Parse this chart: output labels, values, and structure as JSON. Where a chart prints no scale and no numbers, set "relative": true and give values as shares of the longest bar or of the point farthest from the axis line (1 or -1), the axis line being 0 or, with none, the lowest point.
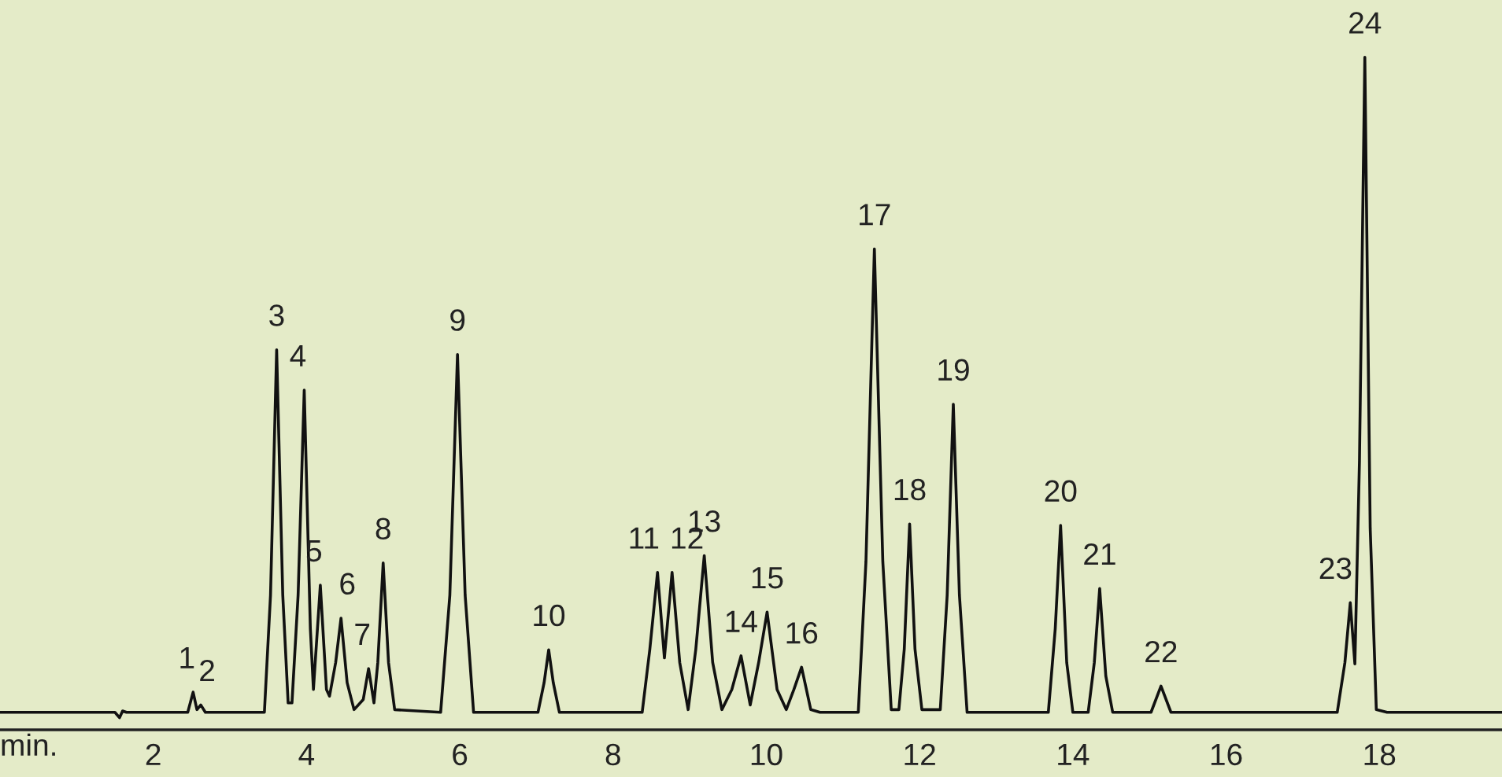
{
  "chart_data": {
    "type": "line",
    "relative": true,
    "xlabel": "min.",
    "xlim": [
      0,
      19.6
    ],
    "xticks": [
      2,
      4,
      6,
      8,
      10,
      12,
      14,
      16,
      18
    ],
    "grid": false,
    "legend": false,
    "marker": "none",
    "line_style": "solid",
    "series": [
      {
        "color": "#111111",
        "x": [
          0,
          1.5,
          1.56,
          1.6,
          1.65,
          2.45,
          2.52,
          2.57,
          2.62,
          2.68,
          3.45,
          3.53,
          3.61,
          3.69,
          3.76,
          3.81,
          3.89,
          3.97,
          4.05,
          4.09,
          4.18,
          4.26,
          4.3,
          4.38,
          4.45,
          4.53,
          4.62,
          4.74,
          4.81,
          4.88,
          4.93,
          5.0,
          5.07,
          5.15,
          5.75,
          5.87,
          5.97,
          6.07,
          6.18,
          7.02,
          7.1,
          7.16,
          7.22,
          7.3,
          8.38,
          8.48,
          8.58,
          8.67,
          8.77,
          8.87,
          8.98,
          9.08,
          9.19,
          9.3,
          9.42,
          9.55,
          9.67,
          9.79,
          9.9,
          10.01,
          10.14,
          10.26,
          10.36,
          10.46,
          10.58,
          10.7,
          11.2,
          11.3,
          11.41,
          11.52,
          11.63,
          11.73,
          11.8,
          11.87,
          11.94,
          12.03,
          12.27,
          12.36,
          12.44,
          12.52,
          12.62,
          13.68,
          13.77,
          13.84,
          13.92,
          14.0,
          14.2,
          14.28,
          14.35,
          14.43,
          14.52,
          15.02,
          15.15,
          15.28,
          17.45,
          17.55,
          17.62,
          17.68,
          17.74,
          17.81,
          17.88,
          17.96,
          18.1,
          19.6
        ],
        "values": [
          0.026,
          0.026,
          0.018,
          0.028,
          0.026,
          0.026,
          0.056,
          0.03,
          0.037,
          0.026,
          0.026,
          0.2,
          0.565,
          0.2,
          0.04,
          0.04,
          0.2,
          0.505,
          0.15,
          0.06,
          0.215,
          0.06,
          0.05,
          0.1,
          0.166,
          0.07,
          0.03,
          0.045,
          0.091,
          0.04,
          0.1,
          0.248,
          0.1,
          0.03,
          0.026,
          0.2,
          0.558,
          0.2,
          0.026,
          0.026,
          0.07,
          0.119,
          0.07,
          0.026,
          0.026,
          0.12,
          0.234,
          0.107,
          0.234,
          0.1,
          0.03,
          0.12,
          0.259,
          0.1,
          0.03,
          0.06,
          0.11,
          0.037,
          0.1,
          0.175,
          0.06,
          0.03,
          0.06,
          0.093,
          0.03,
          0.026,
          0.026,
          0.25,
          0.715,
          0.25,
          0.03,
          0.03,
          0.12,
          0.306,
          0.12,
          0.03,
          0.03,
          0.2,
          0.484,
          0.2,
          0.026,
          0.026,
          0.15,
          0.304,
          0.1,
          0.026,
          0.026,
          0.1,
          0.21,
          0.08,
          0.026,
          0.026,
          0.065,
          0.026,
          0.026,
          0.1,
          0.189,
          0.098,
          0.4,
          1.0,
          0.3,
          0.03,
          0.026,
          0.026
        ]
      }
    ],
    "annotations": [
      {
        "text": "1",
        "x": 2.52,
        "y": 0.056
      },
      {
        "text": "2",
        "x": 2.62,
        "y": 0.037
      },
      {
        "text": "3",
        "x": 3.61,
        "y": 0.565
      },
      {
        "text": "4",
        "x": 3.97,
        "y": 0.505
      },
      {
        "text": "5",
        "x": 4.18,
        "y": 0.215
      },
      {
        "text": "6",
        "x": 4.45,
        "y": 0.166
      },
      {
        "text": "7",
        "x": 4.81,
        "y": 0.091
      },
      {
        "text": "8",
        "x": 5.0,
        "y": 0.248
      },
      {
        "text": "9",
        "x": 5.97,
        "y": 0.558
      },
      {
        "text": "10",
        "x": 7.16,
        "y": 0.119
      },
      {
        "text": "11",
        "x": 8.58,
        "y": 0.234
      },
      {
        "text": "12",
        "x": 8.77,
        "y": 0.234
      },
      {
        "text": "13",
        "x": 9.19,
        "y": 0.259
      },
      {
        "text": "14",
        "x": 9.67,
        "y": 0.11
      },
      {
        "text": "15",
        "x": 10.01,
        "y": 0.175
      },
      {
        "text": "16",
        "x": 10.46,
        "y": 0.093
      },
      {
        "text": "17",
        "x": 11.41,
        "y": 0.715
      },
      {
        "text": "18",
        "x": 11.87,
        "y": 0.306
      },
      {
        "text": "19",
        "x": 12.44,
        "y": 0.484
      },
      {
        "text": "20",
        "x": 13.84,
        "y": 0.304
      },
      {
        "text": "21",
        "x": 14.35,
        "y": 0.21
      },
      {
        "text": "22",
        "x": 15.15,
        "y": 0.065
      },
      {
        "text": "23",
        "x": 17.62,
        "y": 0.189
      },
      {
        "text": "24",
        "x": 17.81,
        "y": 1.0
      }
    ]
  }
}
